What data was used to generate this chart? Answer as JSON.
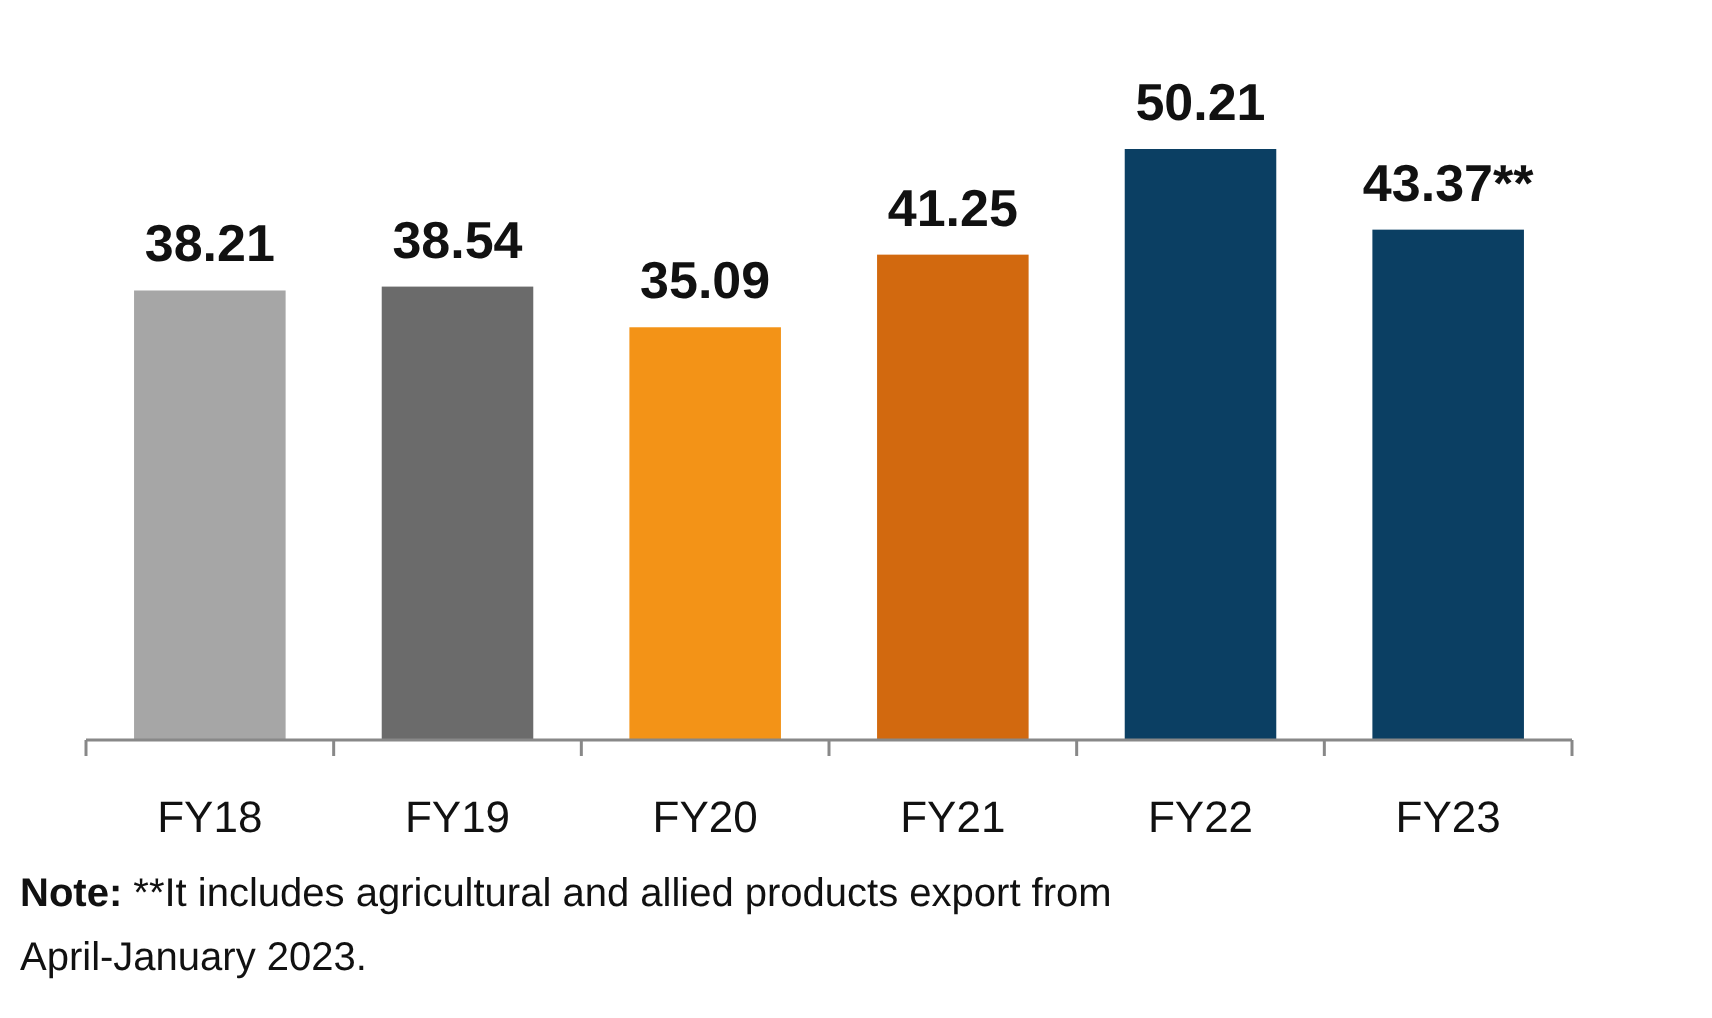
{
  "chart_data": {
    "type": "bar",
    "categories": [
      "FY18",
      "FY19",
      "FY20",
      "FY21",
      "FY22",
      "FY23"
    ],
    "values": [
      38.21,
      38.54,
      35.09,
      41.25,
      50.21,
      43.37
    ],
    "colors": [
      "#a6a6a6",
      "#6b6b6b",
      "#f39317",
      "#d2690f",
      "#0b3f63",
      "#0b3f63"
    ],
    "value_labels": [
      "38.21",
      "38.54",
      "35.09",
      "41.25",
      "50.21",
      "43.37**"
    ],
    "annotations": [
      "Note: **It includes agricultural and allied products export from April-January 2023."
    ]
  }
}
